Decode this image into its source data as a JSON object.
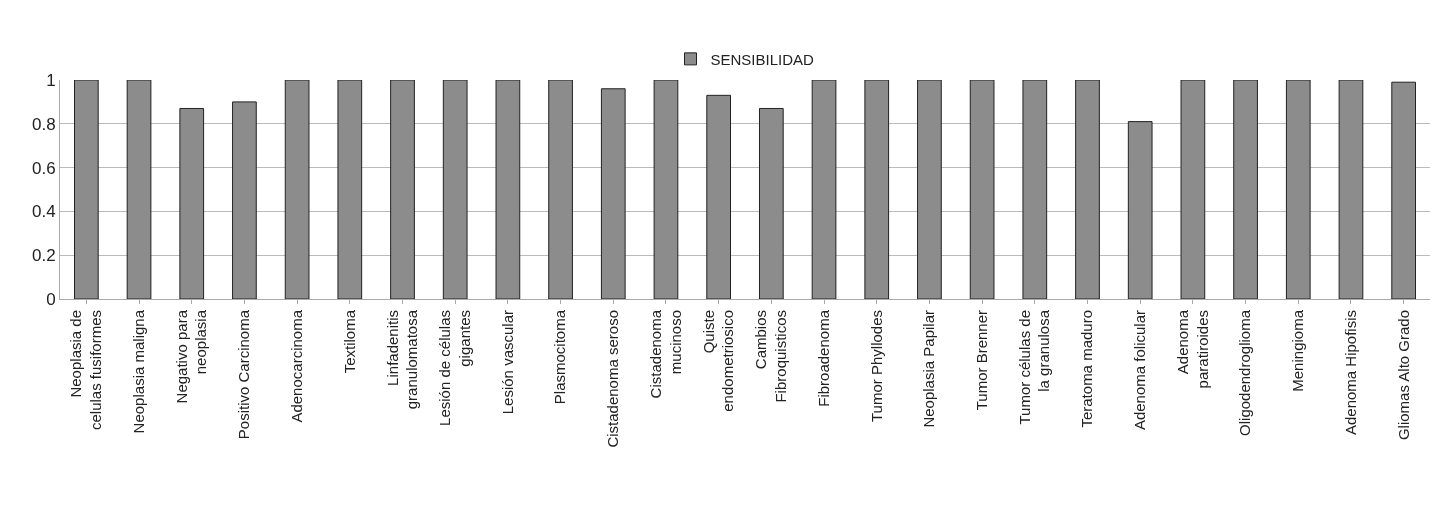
{
  "chart_data": {
    "type": "bar",
    "categories": [
      "Neoplasia de celulas fusiformes",
      "Neoplasia maligna",
      "Negativo para neoplasia",
      "Positivo Carcinoma",
      "Adenocarcinoma",
      "Textiloma",
      "Linfadenitis granulomatosa",
      "Lesión de células gigantes",
      "Lesión vascular",
      "Plasmocitoma",
      "Cistadenoma seroso",
      "Cistadenoma mucinoso",
      "Quiste endometriosico",
      "Cambios Fibroquisticos",
      "Fibroadenoma",
      "Tumor Phyllodes",
      "Neoplasia Papilar",
      "Tumor Brenner",
      "Tumor células de la granulosa",
      "Teratoma maduro",
      "Adenoma folicular",
      "Adenoma paratiroides",
      "Oligodendroglioma",
      "Meningioma",
      "Adenoma Hipofisis",
      "Gliomas Alto Grado"
    ],
    "series": [
      {
        "name": "SENSIBILIDAD",
        "color": "#8c8c8c",
        "values": [
          1,
          1,
          0.87,
          0.9,
          1,
          1,
          1,
          1,
          1,
          1,
          0.96,
          1,
          0.93,
          0.87,
          1,
          1,
          1,
          1,
          1,
          1,
          0.81,
          1,
          1,
          1,
          1,
          0.99
        ]
      }
    ],
    "ylim": [
      0,
      1
    ],
    "yticks": [
      0,
      0.2,
      0.4,
      0.6,
      0.8,
      1
    ],
    "grid": "y",
    "legend": "top"
  }
}
